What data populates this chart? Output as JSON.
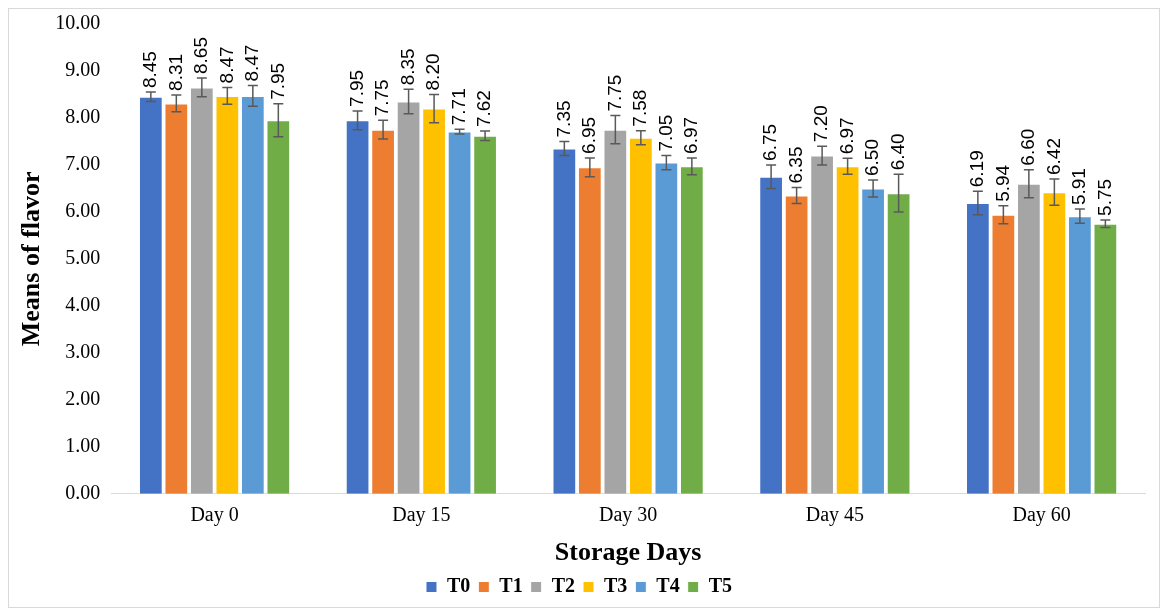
{
  "chart_data": {
    "type": "bar",
    "xlabel": "Storage Days",
    "ylabel": "Means of flavor",
    "categories": [
      "Day 0",
      "Day 15",
      "Day 30",
      "Day 45",
      "Day 60"
    ],
    "series": [
      {
        "name": "T0",
        "color": "#4472c4",
        "values": [
          8.45,
          7.95,
          7.35,
          6.75,
          6.19
        ],
        "errors": [
          0.1,
          0.2,
          0.15,
          0.25,
          0.25
        ],
        "value_labels": [
          "8.45",
          "7.95",
          "7.35",
          "6.75",
          "6.19"
        ]
      },
      {
        "name": "T1",
        "color": "#ed7d31",
        "values": [
          8.31,
          7.75,
          6.95,
          6.35,
          5.94
        ],
        "errors": [
          0.18,
          0.2,
          0.2,
          0.17,
          0.19
        ],
        "value_labels": [
          "8.31",
          "7.75",
          "6.95",
          "6.35",
          "5.94"
        ]
      },
      {
        "name": "T2",
        "color": "#a5a5a5",
        "values": [
          8.65,
          8.35,
          7.75,
          7.2,
          6.6
        ],
        "errors": [
          0.2,
          0.26,
          0.3,
          0.2,
          0.3
        ],
        "value_labels": [
          "8.65",
          "8.35",
          "7.75",
          "7.20",
          "6.60"
        ]
      },
      {
        "name": "T3",
        "color": "#ffc000",
        "values": [
          8.47,
          8.2,
          7.58,
          6.97,
          6.42
        ],
        "errors": [
          0.18,
          0.3,
          0.15,
          0.17,
          0.28
        ],
        "value_labels": [
          "8.47",
          "8.20",
          "7.58",
          "6.97",
          "6.42"
        ]
      },
      {
        "name": "T4",
        "color": "#5b9bd5",
        "values": [
          8.47,
          7.71,
          7.05,
          6.5,
          5.91
        ],
        "errors": [
          0.22,
          0.05,
          0.15,
          0.18,
          0.15
        ],
        "value_labels": [
          "8.47",
          "7.71",
          "7.05",
          "6.50",
          "5.91"
        ]
      },
      {
        "name": "T5",
        "color": "#70ad47",
        "values": [
          7.95,
          7.62,
          6.97,
          6.4,
          5.75
        ],
        "errors": [
          0.35,
          0.1,
          0.18,
          0.4,
          0.08
        ],
        "value_labels": [
          "7.95",
          "7.62",
          "6.97",
          "6.40",
          "5.75"
        ]
      }
    ],
    "ylim": [
      0,
      10
    ],
    "yticks": [
      {
        "value": 0,
        "label": "0.00"
      },
      {
        "value": 1,
        "label": "1.00"
      },
      {
        "value": 2,
        "label": "2.00"
      },
      {
        "value": 3,
        "label": "3.00"
      },
      {
        "value": 4,
        "label": "4.00"
      },
      {
        "value": 5,
        "label": "5.00"
      },
      {
        "value": 6,
        "label": "6.00"
      },
      {
        "value": 7,
        "label": "7.00"
      },
      {
        "value": 8,
        "label": "8.00"
      },
      {
        "value": 9,
        "label": "9.00"
      },
      {
        "value": 10,
        "label": "10.00"
      }
    ],
    "grid": false,
    "legend": "bottom"
  }
}
